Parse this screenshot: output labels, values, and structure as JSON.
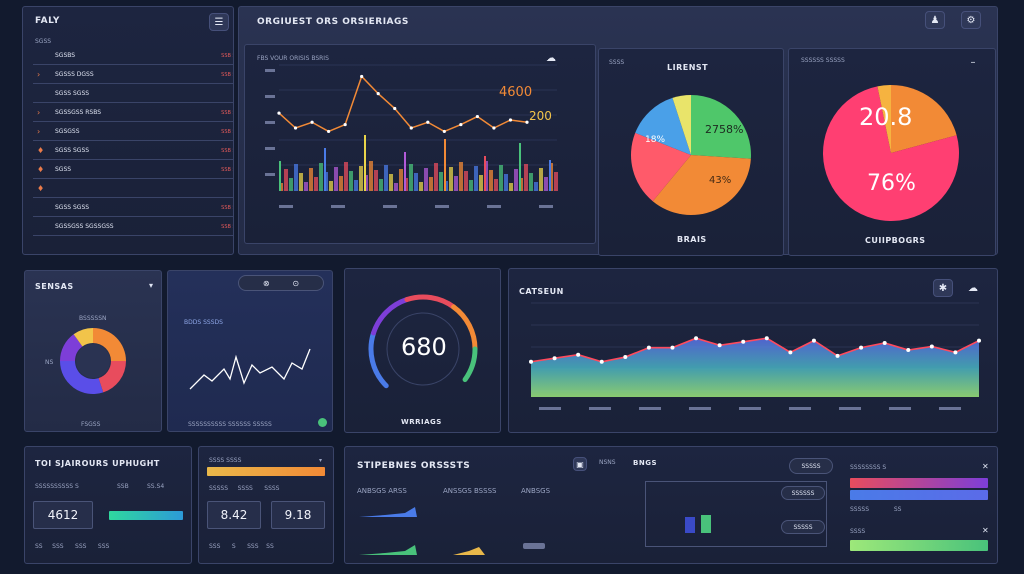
{
  "colors": {
    "bg": "#121a2e",
    "panel": "#2a3352",
    "accent_orange": "#f28a36",
    "accent_green": "#49c27b",
    "accent_blue": "#4a7be8",
    "accent_red": "#e84c5d"
  },
  "sidebar": {
    "title": "FALY",
    "header_sub": "SGSS",
    "items": [
      {
        "label": "SGSBS",
        "value": "SSB SK",
        "icon": ""
      },
      {
        "label": "SGSSS DGSS",
        "value": "SSB SK",
        "icon": "›"
      },
      {
        "label": "SGSS SGSS",
        "value": "",
        "icon": ""
      },
      {
        "label": "SGSSGSS RSBS",
        "value": "SSB SK",
        "icon": "›"
      },
      {
        "label": "SGSGSS",
        "value": "SSB SK",
        "icon": "›"
      },
      {
        "label": "SGSS SGSS",
        "value": "SSB SK",
        "icon": "♦"
      },
      {
        "label": "SGSS",
        "value": "SSB SK",
        "icon": "♦"
      },
      {
        "label": "",
        "value": "",
        "icon": "♦"
      },
      {
        "label": "SGSS SGSS",
        "value": "SSB SK",
        "icon": ""
      },
      {
        "label": "SGSSGSS SGSSGSS",
        "value": "SSB SK",
        "icon": ""
      }
    ]
  },
  "header": {
    "title": "ORGIUEST ORS ORSIERIAGS",
    "user_icon": "user-icon",
    "settings_icon": "settings-icon"
  },
  "line_panel": {
    "subtitle": "FBS VOUR ORISIS BSRIS",
    "value1": "4600",
    "value2": "200"
  },
  "pie1": {
    "title": "LIRENST",
    "label_top": "2758%",
    "label_left": "18%",
    "label_right": "43%",
    "footer": "BRAIS"
  },
  "pie2": {
    "title": "",
    "value_top": "20.8",
    "value_bottom": "76%",
    "footer": "CUIIPBOGRS"
  },
  "sensors": {
    "title": "SENSAS",
    "label_top": "BSSSSSN",
    "label_left": "NS",
    "footer": "FSGSS"
  },
  "spark": {
    "title": "BDDS SSSDS",
    "footer": "SSSSSSSSSS SSSSSS SSSSS"
  },
  "gauge": {
    "value": "680",
    "footer": "WRRIAGS"
  },
  "area_chart": {
    "title": "CATSEUN"
  },
  "bottom_left": {
    "title": "TOI SJAIROURS UPHUGHT",
    "stat1": "4612",
    "stat_label": "SSB",
    "stat_label2": "SS.S4"
  },
  "bottom_mid": {
    "stat1": "8.42",
    "stat2": "9.18",
    "label": "SSSS SSSS"
  },
  "bottom_wide": {
    "title": "STIPEBNES ORSSSTS",
    "col1": "ANBSGS ARSS",
    "col2": "ANSSGS BSSSS",
    "col3": "ANBSGS",
    "right_title": "BNGS",
    "right_col": "NSNS",
    "pill1": "SSSSS",
    "pill2": "SSSSSS",
    "pill3": "SSSSS"
  },
  "bottom_right": {
    "title": "SSSSSSSS S",
    "row2": "SSSS"
  },
  "chart_data": [
    {
      "type": "line",
      "title": "",
      "series": [
        {
          "name": "",
          "values": [
            68,
            55,
            60,
            52,
            58,
            100,
            85,
            72,
            55,
            60,
            52,
            58,
            65,
            55,
            62,
            60
          ]
        }
      ],
      "ylim": [
        0,
        110
      ]
    },
    {
      "type": "pie",
      "title": "LIRENST",
      "values": [
        26,
        35,
        20,
        14,
        5
      ]
    },
    {
      "type": "pie",
      "title": "",
      "values": [
        20.8,
        76,
        3.2
      ]
    },
    {
      "type": "line",
      "title": "CATSEUN",
      "series": [
        {
          "name": "",
          "values": [
            30,
            33,
            36,
            30,
            34,
            42,
            42,
            50,
            44,
            47,
            50,
            38,
            48,
            35,
            42,
            46,
            40,
            43,
            38,
            48
          ]
        }
      ],
      "ylim": [
        0,
        80
      ]
    }
  ]
}
